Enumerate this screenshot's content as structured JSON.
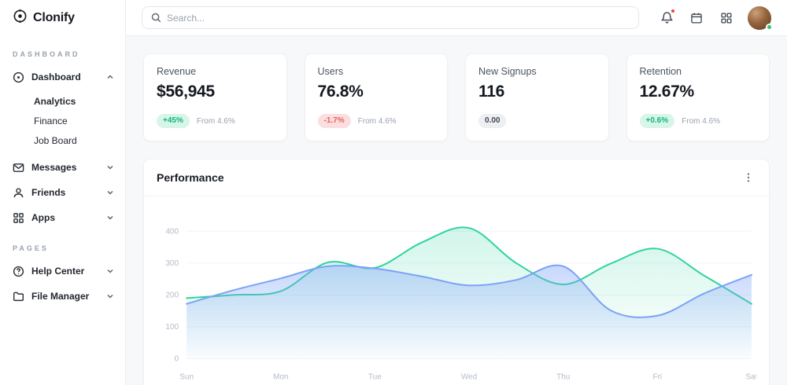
{
  "brand": {
    "name": "Clonify"
  },
  "topbar": {
    "search_placeholder": "Search...",
    "notifications_icon": "bell",
    "has_notification": true
  },
  "sidebar": {
    "sections": {
      "dashboard": "DASHBOARD",
      "pages": "PAGES"
    },
    "items": {
      "dashboard": "Dashboard",
      "analytics": "Analytics",
      "finance": "Finance",
      "job_board": "Job Board",
      "messages": "Messages",
      "friends": "Friends",
      "apps": "Apps",
      "help_center": "Help Center",
      "file_manager": "File Manager"
    }
  },
  "stats": {
    "cards": [
      {
        "label": "Revenue",
        "value": "$56,945",
        "badge": "+45%",
        "badge_type": "positive",
        "note": "From 4.6%"
      },
      {
        "label": "Users",
        "value": "76.8%",
        "badge": "-1.7%",
        "badge_type": "negative",
        "note": "From 4.6%"
      },
      {
        "label": "New Signups",
        "value": "116",
        "badge": "0.00",
        "badge_type": "neutral",
        "note": ""
      },
      {
        "label": "Retention",
        "value": "12.67%",
        "badge": "+0.6%",
        "badge_type": "positive",
        "note": "From 4.6%"
      }
    ]
  },
  "performance": {
    "title": "Performance"
  },
  "chart_data": {
    "type": "area",
    "title": "Performance",
    "categories": [
      "Sun",
      "Mon",
      "Tue",
      "Wed",
      "Thu",
      "Fri",
      "Sat"
    ],
    "x": [
      0,
      0.5,
      1,
      1.5,
      2,
      2.5,
      3,
      3.5,
      4,
      4.5,
      5,
      5.5,
      6
    ],
    "yticks": [
      0,
      100,
      200,
      300,
      400
    ],
    "ylim": [
      0,
      440
    ],
    "grid": true,
    "legend": false,
    "series": [
      {
        "name": "series-green",
        "color": "#2fd3a0",
        "fill_from": "rgba(47,211,160,0.22)",
        "fill_to": "rgba(47,211,160,0)",
        "values": [
          190,
          200,
          212,
          302,
          285,
          365,
          410,
          300,
          233,
          298,
          345,
          260,
          172
        ]
      },
      {
        "name": "series-blue",
        "color": "#7ba3f7",
        "fill_from": "rgba(123,163,247,0.42)",
        "fill_to": "rgba(123,163,247,0.03)",
        "values": [
          172,
          215,
          252,
          290,
          283,
          258,
          230,
          247,
          290,
          152,
          135,
          205,
          263
        ]
      }
    ]
  },
  "colors": {
    "accent_green": "#2fd3a0",
    "accent_blue": "#7ba3f7",
    "positive_text": "#0fb67f",
    "negative_text": "#ee5c5c",
    "alert_red": "#f04444",
    "online_green": "#28c76f"
  }
}
